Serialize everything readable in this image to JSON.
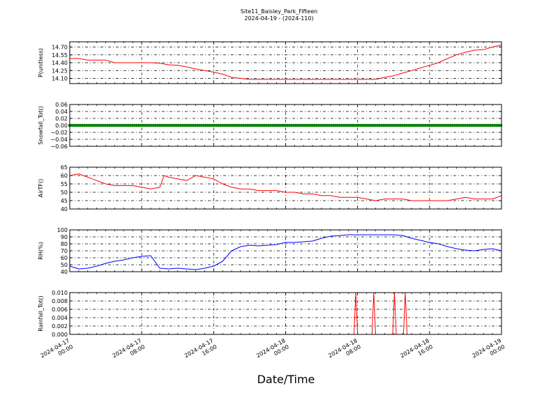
{
  "figure": {
    "title_line1": "Site11_Baisley_Park_Fifteen",
    "title_line2": "2024-04-19 - (2024-110)",
    "xlabel": "Date/Time"
  },
  "chart_data": [
    {
      "type": "line",
      "ylabel": "P(unitless)",
      "ylim": [
        14.0,
        14.8
      ],
      "yticks": [
        "14.10",
        "14.25",
        "14.40",
        "14.55",
        "14.70"
      ],
      "ytick_values": [
        14.1,
        14.25,
        14.4,
        14.55,
        14.7
      ],
      "color": "#ff0000",
      "grid": true,
      "x": [
        0,
        1,
        2,
        3,
        4,
        5,
        6,
        7,
        8,
        9,
        10,
        11,
        12,
        13,
        14,
        15,
        16,
        17,
        18,
        19,
        20,
        21,
        22,
        23,
        24,
        25,
        26,
        27,
        28,
        29,
        30,
        31,
        32,
        33,
        34,
        35,
        36,
        37,
        38,
        39,
        40,
        41,
        42,
        43,
        44,
        45,
        46,
        47,
        48
      ],
      "values": [
        14.48,
        14.48,
        14.45,
        14.45,
        14.45,
        14.4,
        14.4,
        14.4,
        14.4,
        14.4,
        14.39,
        14.36,
        14.35,
        14.32,
        14.28,
        14.25,
        14.22,
        14.18,
        14.12,
        14.1,
        14.08,
        14.08,
        14.08,
        14.08,
        14.08,
        14.08,
        14.08,
        14.08,
        14.08,
        14.08,
        14.08,
        14.08,
        14.08,
        14.08,
        14.08,
        14.12,
        14.15,
        14.2,
        14.25,
        14.3,
        14.35,
        14.4,
        14.48,
        14.55,
        14.6,
        14.64,
        14.65,
        14.7,
        14.74
      ],
      "_x_note": "hours"
    },
    {
      "type": "scatter",
      "ylabel": "Snowfall_Tot()",
      "ylim": [
        -0.06,
        0.06
      ],
      "yticks": [
        "−0.06",
        "−0.04",
        "−0.02",
        "0.00",
        "0.02",
        "0.04",
        "0.06"
      ],
      "ytick_values": [
        -0.06,
        -0.04,
        -0.02,
        0.0,
        0.02,
        0.04,
        0.06
      ],
      "color": "#008000",
      "grid": true,
      "x": [
        0,
        48
      ],
      "values": [
        0.0,
        0.0
      ]
    },
    {
      "type": "line",
      "ylabel": "AirTF()",
      "ylim": [
        40,
        65
      ],
      "yticks": [
        "40",
        "45",
        "50",
        "55",
        "60",
        "65"
      ],
      "ytick_values": [
        40,
        45,
        50,
        55,
        60,
        65
      ],
      "color": "#ff0000",
      "grid": true,
      "x": [
        0,
        1,
        2,
        3,
        4,
        5,
        6,
        7,
        8,
        9,
        10,
        10.5,
        11,
        12,
        13,
        14,
        15,
        16,
        17,
        18,
        19,
        20,
        21,
        22,
        23,
        24,
        25,
        26,
        27,
        28,
        29,
        30,
        31,
        32,
        33,
        34,
        35,
        36,
        37,
        38,
        39,
        40,
        41,
        42,
        43,
        44,
        45,
        46,
        47,
        48
      ],
      "values": [
        60,
        61,
        59,
        57,
        55,
        54,
        54,
        54,
        53,
        52,
        53,
        60,
        59,
        58,
        57,
        60,
        59,
        58,
        55,
        53,
        52,
        52,
        51,
        51,
        51,
        50,
        50,
        49,
        49,
        48,
        48,
        47,
        47,
        47,
        46,
        45,
        46,
        46,
        46,
        45,
        45,
        45,
        45,
        45,
        46,
        47,
        46,
        46,
        46,
        48
      ]
    },
    {
      "type": "line",
      "ylabel": "RH(%)",
      "ylim": [
        40,
        100
      ],
      "yticks": [
        "40",
        "50",
        "60",
        "70",
        "80",
        "90",
        "100"
      ],
      "ytick_values": [
        40,
        50,
        60,
        70,
        80,
        90,
        100
      ],
      "color": "#0000ff",
      "grid": true,
      "x": [
        0,
        1,
        2,
        3,
        4,
        5,
        6,
        7,
        8,
        9,
        10,
        11,
        12,
        13,
        14,
        15,
        16,
        17,
        18,
        19,
        20,
        21,
        22,
        23,
        24,
        25,
        26,
        27,
        28,
        29,
        30,
        31,
        32,
        33,
        34,
        35,
        36,
        37,
        38,
        39,
        40,
        41,
        42,
        43,
        44,
        45,
        46,
        47,
        48
      ],
      "values": [
        48,
        44,
        45,
        48,
        52,
        55,
        57,
        60,
        62,
        63,
        45,
        44,
        45,
        44,
        43,
        45,
        48,
        55,
        70,
        76,
        78,
        77,
        78,
        79,
        82,
        82,
        83,
        84,
        88,
        91,
        92,
        93,
        93,
        93,
        93,
        93,
        93,
        92,
        88,
        85,
        82,
        80,
        76,
        73,
        71,
        70,
        72,
        73,
        70
      ]
    },
    {
      "type": "line",
      "ylabel": "Rainfall_Tot()",
      "ylim": [
        0.0,
        0.01
      ],
      "yticks": [
        "0.000",
        "0.002",
        "0.004",
        "0.006",
        "0.008",
        "0.010"
      ],
      "ytick_values": [
        0.0,
        0.002,
        0.004,
        0.006,
        0.008,
        0.01
      ],
      "color": "#ff0000",
      "grid": true,
      "x": [
        0,
        31.6,
        31.8,
        32.0,
        33.6,
        33.8,
        34.0,
        35.9,
        36.1,
        36.3,
        37.1,
        37.3,
        37.5,
        48
      ],
      "values": [
        0,
        0,
        0.01,
        0,
        0,
        0.01,
        0,
        0,
        0.01,
        0,
        0,
        0.01,
        0,
        0
      ]
    }
  ],
  "x_axis": {
    "range_hours": [
      0,
      48
    ],
    "ticks": [
      {
        "hour": 0,
        "line1": "2024-04-17",
        "line2": "00:00"
      },
      {
        "hour": 8,
        "line1": "2024-04-17",
        "line2": "08:00"
      },
      {
        "hour": 16,
        "line1": "2024-04-17",
        "line2": "16:00"
      },
      {
        "hour": 24,
        "line1": "2024-04-18",
        "line2": "00:00"
      },
      {
        "hour": 32,
        "line1": "2024-04-18",
        "line2": "08:00"
      },
      {
        "hour": 40,
        "line1": "2024-04-18",
        "line2": "16:00"
      },
      {
        "hour": 48,
        "line1": "2024-04-19",
        "line2": "00:00"
      }
    ]
  }
}
